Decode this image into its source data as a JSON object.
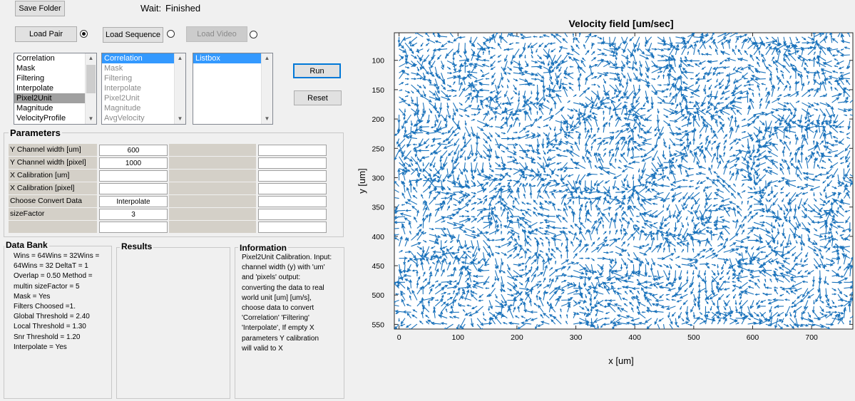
{
  "toolbar": {
    "save_folder": "Save Folder",
    "status_label": "Wait:",
    "status_value": "Finished",
    "load_pair": "Load Pair",
    "load_sequence": "Load Sequence",
    "load_video": "Load Video",
    "run": "Run",
    "reset": "Reset"
  },
  "lists": {
    "steps": [
      "Correlation",
      "Mask",
      "Filtering",
      "Interpolate",
      "Pixel2Unit",
      "Magnitude",
      "VelocityProfile"
    ],
    "done": [
      "Correlation",
      "Mask",
      "Filtering",
      "Interpolate",
      "Pixel2Unit",
      "Magnitude",
      "AvgVelocity"
    ],
    "listbox": [
      "Listbox"
    ]
  },
  "parameters": {
    "title": "Parameters",
    "rows": [
      {
        "label": "Y Channel width [um]",
        "value": "600"
      },
      {
        "label": "Y Channel width [pixel]",
        "value": "1000"
      },
      {
        "label": "X Calibration [um]",
        "value": ""
      },
      {
        "label": "X Calibration [pixel]",
        "value": ""
      },
      {
        "label": "Choose Convert Data",
        "value": "Interpolate"
      },
      {
        "label": "sizeFactor",
        "value": "3"
      },
      {
        "label": "",
        "value": ""
      }
    ]
  },
  "databank": {
    "title": "Data Bank",
    "lines": [
      "Wins = 64Wins = 32Wins =",
      "64Wins = 32  DeltaT = 1",
      "Overlap = 0.50  Method =",
      "multin  sizeFactor = 5",
      "Mask = Yes",
      "Filters Choosed =1.",
      "Global Threshold = 2.40",
      "Local Threshold = 1.30",
      "Snr Threshold = 1.20",
      "Interpolate = Yes"
    ]
  },
  "results": {
    "title": "Results"
  },
  "information": {
    "title": "Information",
    "lines": [
      "Pixel2Unit Calibration. Input:",
      "channel width (y) with 'um'",
      "and 'pixels' output:",
      "converting the data to real",
      "world unit [um] [um/s],",
      "choose data to convert",
      "'Correlation' 'Filtering'",
      "'Interpolate', If empty X",
      "parameters Y calibration",
      "will valid to X"
    ]
  },
  "chart_data": {
    "type": "quiver",
    "title": "Velocity field [um/sec]",
    "xlabel": "x [um]",
    "ylabel": "y [um]",
    "xlim": [
      -8,
      770
    ],
    "ylim": [
      558,
      53
    ],
    "y_reversed": true,
    "xticks": [
      0,
      100,
      200,
      300,
      400,
      500,
      600,
      700
    ],
    "yticks": [
      100,
      150,
      200,
      250,
      300,
      350,
      400,
      450,
      500,
      550
    ],
    "grid": false,
    "arrow_color": "#1a72bb",
    "grid_spacing_x": 10.2,
    "grid_spacing_y": 10.2
  }
}
